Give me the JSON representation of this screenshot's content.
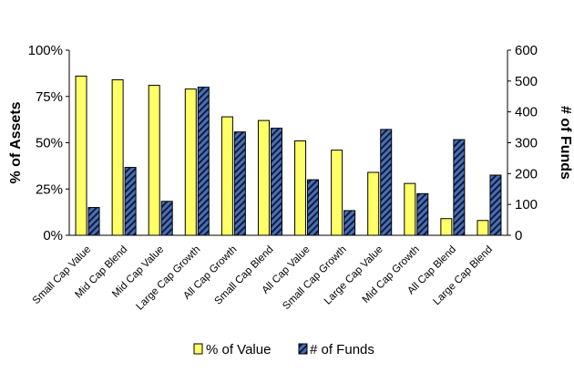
{
  "chart_data": {
    "type": "bar",
    "categories": [
      "Small Cap Value",
      "Mid Cap Blend",
      "Mid Cap Value",
      "Large Cap Growth",
      "All Cap Growth",
      "Small Cap Blend",
      "All Cap Value",
      "Small Cap Growth",
      "Large Cap Value",
      "Mid Cap Growth",
      "All Cap Blend",
      "Large Cap Blend"
    ],
    "series": [
      {
        "name": "% of Value",
        "axis": "left",
        "color": "#ffff66",
        "pattern": "solid",
        "values": [
          86,
          84,
          81,
          79,
          64,
          62,
          51,
          46,
          34,
          28,
          9,
          8
        ]
      },
      {
        "name": "# of Funds",
        "axis": "right",
        "color": "#4a6fb5",
        "pattern": "diagonal-stripes",
        "values": [
          90,
          220,
          110,
          480,
          335,
          347,
          180,
          80,
          343,
          135,
          310,
          195
        ]
      }
    ],
    "ylabel_left": "% of Assets",
    "ylabel_right": "# of Funds",
    "ylim_left": [
      0,
      100
    ],
    "ylim_right": [
      0,
      600
    ],
    "yticks_left": [
      "0%",
      "25%",
      "50%",
      "75%",
      "100%"
    ],
    "yticks_right": [
      "0",
      "100",
      "200",
      "300",
      "400",
      "500",
      "600"
    ],
    "legend_position": "bottom",
    "grid": false
  }
}
